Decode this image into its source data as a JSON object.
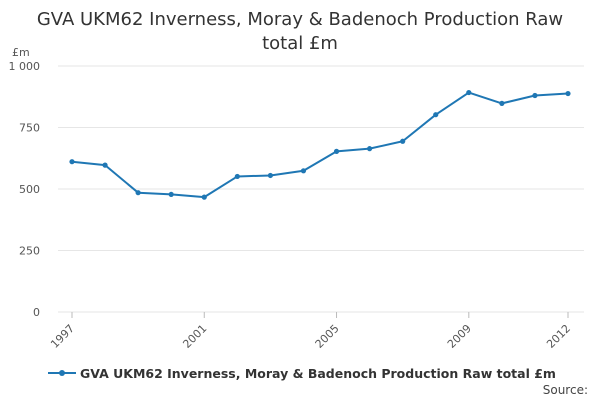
{
  "header": {
    "title_line1": "GVA UKM62 Inverness, Moray & Badenoch Production Raw",
    "title_line2": "total £m"
  },
  "footer": {
    "source": "Source:"
  },
  "colors": {
    "series": "#1f77b4",
    "grid": "#e6e6e6",
    "axis_text": "#555555"
  },
  "chart_data": {
    "type": "line",
    "title": "GVA UKM62 Inverness, Moray & Badenoch Production Raw total £m",
    "ylabel": "£m",
    "xlabel": "",
    "ylim": [
      0,
      1000
    ],
    "yticks": [
      0,
      250,
      500,
      750,
      1000
    ],
    "ytick_labels": [
      "0",
      "250",
      "500",
      "750",
      "1 000"
    ],
    "xticks": [
      "1997",
      "2001",
      "2005",
      "2009",
      "2012"
    ],
    "grid": true,
    "legend_position": "bottom-left",
    "x": [
      "1997",
      "1998",
      "1999",
      "2000",
      "2001",
      "2002",
      "2003",
      "2004",
      "2005",
      "2006",
      "2007",
      "2008",
      "2009",
      "2010",
      "2011",
      "2012"
    ],
    "series": [
      {
        "name": "GVA UKM62 Inverness, Moray & Badenoch Production Raw total £m",
        "values": [
          611,
          597,
          485,
          478,
          467,
          551,
          555,
          574,
          653,
          664,
          694,
          802,
          892,
          848,
          880,
          888
        ]
      }
    ]
  }
}
